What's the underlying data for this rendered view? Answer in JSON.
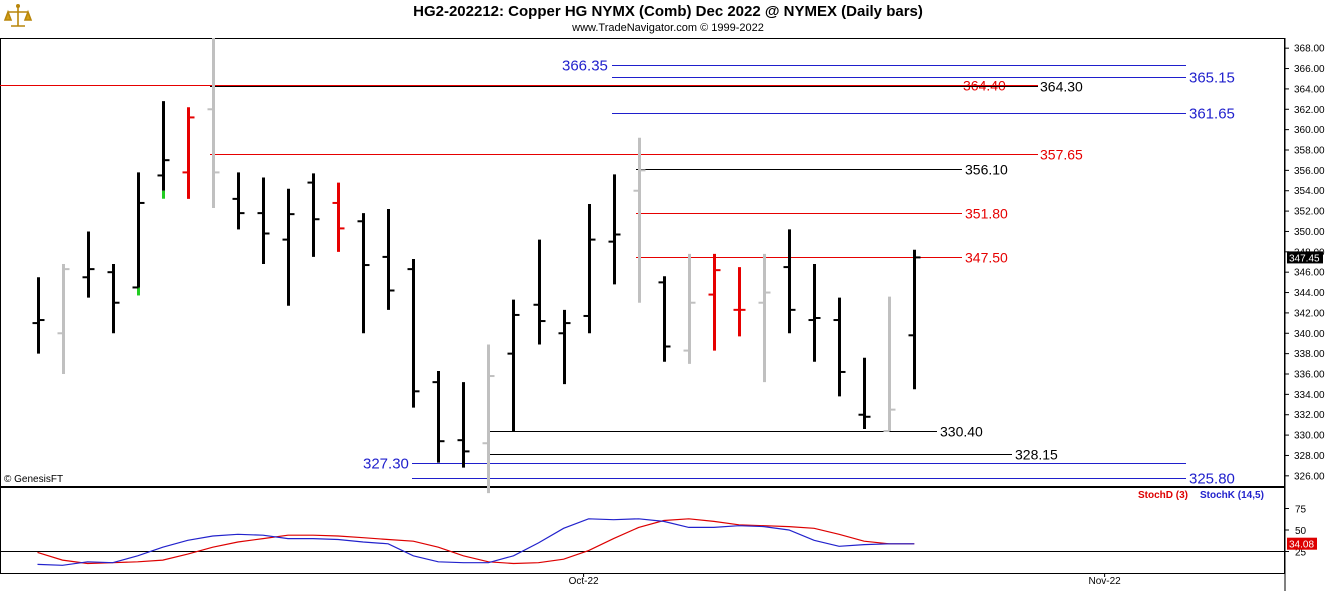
{
  "header": {
    "title": "HG2-202212:  Copper HG NYMX (Comb) Dec 2022 @ NYMEX  (Daily bars)",
    "subtitle": "www.TradeNavigator.com © 1999-2022"
  },
  "copyright": "© GenesisFT",
  "colors": {
    "bar_default": "#000000",
    "bar_inside": "#c0c0c0",
    "bar_red": "#e60000",
    "bar_green": "#22cc22",
    "blue_level": "#1f1fcc",
    "red_level": "#e60000",
    "black_level": "#000000",
    "stoch_d": "#dd0000",
    "stoch_k": "#2222cc"
  },
  "chart_data": [
    {
      "type": "ohlc",
      "title": "HG2-202212:  Copper HG NYMX (Comb) Dec 2022 @ NYMEX  (Daily bars)",
      "ylim": [
        325,
        369
      ],
      "y_ticks": [
        "368.00",
        "366.00",
        "364.00",
        "362.00",
        "360.00",
        "358.00",
        "356.00",
        "354.00",
        "352.00",
        "350.00",
        "348.00",
        "346.00",
        "344.00",
        "342.00",
        "340.00",
        "338.00",
        "336.00",
        "334.00",
        "332.00",
        "330.00",
        "328.00",
        "326.00"
      ],
      "last_price_label": "347.45",
      "last_price": 347.45,
      "bars": [
        {
          "o": 341.0,
          "h": 345.5,
          "l": 338.0,
          "c": 341.3,
          "color": "black"
        },
        {
          "o": 340.0,
          "h": 346.8,
          "l": 336.0,
          "c": 346.3,
          "color": "grey"
        },
        {
          "o": 345.5,
          "h": 350.0,
          "l": 343.5,
          "c": 346.3,
          "color": "black"
        },
        {
          "o": 346.0,
          "h": 346.8,
          "l": 340.0,
          "c": 343.0,
          "color": "black"
        },
        {
          "o": 344.5,
          "h": 355.8,
          "l": 344.5,
          "c": 352.8,
          "color": "black",
          "low_color": "green",
          "low_color_from": 344.5
        },
        {
          "o": 355.5,
          "h": 362.8,
          "l": 354.0,
          "c": 357.0,
          "color": "black",
          "low_color": "green",
          "low_color_from": 354.0
        },
        {
          "o": 355.8,
          "h": 362.2,
          "l": 353.2,
          "c": 361.2,
          "color": "red"
        },
        {
          "o": 362.0,
          "h": 369.0,
          "l": 352.3,
          "c": 355.8,
          "color": "grey"
        },
        {
          "o": 353.2,
          "h": 355.8,
          "l": 350.2,
          "c": 351.8,
          "color": "black"
        },
        {
          "o": 351.8,
          "h": 355.3,
          "l": 346.8,
          "c": 349.8,
          "color": "black"
        },
        {
          "o": 349.2,
          "h": 354.2,
          "l": 342.7,
          "c": 351.7,
          "color": "black"
        },
        {
          "o": 354.8,
          "h": 355.7,
          "l": 347.5,
          "c": 351.2,
          "color": "black"
        },
        {
          "o": 352.8,
          "h": 354.8,
          "l": 348.0,
          "c": 350.3,
          "color": "red"
        },
        {
          "o": 351.0,
          "h": 351.8,
          "l": 340.0,
          "c": 346.7,
          "color": "black"
        },
        {
          "o": 347.5,
          "h": 352.2,
          "l": 342.3,
          "c": 344.2,
          "color": "black"
        },
        {
          "o": 346.3,
          "h": 347.3,
          "l": 332.7,
          "c": 334.3,
          "color": "black"
        },
        {
          "o": 335.2,
          "h": 336.3,
          "l": 327.3,
          "c": 329.4,
          "color": "black"
        },
        {
          "o": 329.5,
          "h": 335.2,
          "l": 326.8,
          "c": 328.4,
          "color": "black"
        },
        {
          "o": 329.2,
          "h": 338.9,
          "l": 324.3,
          "c": 335.8,
          "color": "grey"
        },
        {
          "o": 338.0,
          "h": 343.3,
          "l": 330.4,
          "c": 341.8,
          "color": "black"
        },
        {
          "o": 342.8,
          "h": 349.2,
          "l": 338.9,
          "c": 341.2,
          "color": "black"
        },
        {
          "o": 340.0,
          "h": 342.3,
          "l": 335.0,
          "c": 341.0,
          "color": "black"
        },
        {
          "o": 341.7,
          "h": 352.7,
          "l": 340.0,
          "c": 349.2,
          "color": "black"
        },
        {
          "o": 349.0,
          "h": 355.6,
          "l": 344.8,
          "c": 349.7,
          "color": "black"
        },
        {
          "o": 354.0,
          "h": 359.2,
          "l": 343.0,
          "c": 356.0,
          "color": "grey"
        },
        {
          "o": 345.0,
          "h": 345.6,
          "l": 337.2,
          "c": 338.7,
          "color": "black"
        },
        {
          "o": 338.3,
          "h": 347.8,
          "l": 337.0,
          "c": 343.0,
          "color": "grey"
        },
        {
          "o": 343.8,
          "h": 347.8,
          "l": 338.3,
          "c": 346.2,
          "color": "red"
        },
        {
          "o": 342.3,
          "h": 346.5,
          "l": 339.7,
          "c": 342.3,
          "color": "red"
        },
        {
          "o": 343.0,
          "h": 347.8,
          "l": 335.2,
          "c": 344.0,
          "color": "grey"
        },
        {
          "o": 346.5,
          "h": 350.2,
          "l": 340.0,
          "c": 342.3,
          "color": "black"
        },
        {
          "o": 341.3,
          "h": 346.8,
          "l": 337.2,
          "c": 341.5,
          "color": "black"
        },
        {
          "o": 341.3,
          "h": 343.5,
          "l": 333.8,
          "c": 336.2,
          "color": "black"
        },
        {
          "o": 332.0,
          "h": 337.6,
          "l": 330.6,
          "c": 331.8,
          "color": "black"
        },
        {
          "o": 330.4,
          "h": 343.6,
          "l": 330.4,
          "c": 332.5,
          "color": "grey"
        },
        {
          "o": 339.8,
          "h": 348.2,
          "l": 334.5,
          "c": 347.45,
          "color": "black"
        }
      ],
      "levels": [
        {
          "value": 366.35,
          "label": "366.35",
          "color": "blue",
          "label_side": "left"
        },
        {
          "value": 365.15,
          "label": "365.15",
          "color": "blue",
          "label_side": "right"
        },
        {
          "value": 364.4,
          "label": "364.40",
          "color": "red",
          "label_side": "mid"
        },
        {
          "value": 364.3,
          "label": "364.30",
          "color": "black",
          "label_side": "mid"
        },
        {
          "value": 361.65,
          "label": "361.65",
          "color": "blue",
          "label_side": "right"
        },
        {
          "value": 357.65,
          "label": "357.65",
          "color": "red",
          "label_side": "mid"
        },
        {
          "value": 356.1,
          "label": "356.10",
          "color": "black",
          "label_side": "mid"
        },
        {
          "value": 351.8,
          "label": "351.80",
          "color": "red",
          "label_side": "mid"
        },
        {
          "value": 347.5,
          "label": "347.50",
          "color": "red",
          "label_side": "mid"
        },
        {
          "value": 330.4,
          "label": "330.40",
          "color": "black",
          "label_side": "mid"
        },
        {
          "value": 328.15,
          "label": "328.15",
          "color": "black",
          "label_side": "mid"
        },
        {
          "value": 327.3,
          "label": "327.30",
          "color": "blue",
          "label_side": "left"
        },
        {
          "value": 325.8,
          "label": "325.80",
          "color": "blue",
          "label_side": "right"
        }
      ]
    },
    {
      "type": "line",
      "legend": [
        "StochD (3)",
        "StochK (14,5)"
      ],
      "ylim": [
        0,
        100
      ],
      "y_ticks": [
        "75",
        "50",
        "25"
      ],
      "last_value_label": "34.08",
      "x_labels": [
        "Oct-22",
        "Nov-22"
      ],
      "series": [
        {
          "name": "StochD (3)",
          "color": "red",
          "values": [
            24,
            15,
            11,
            12,
            13,
            15,
            22,
            30,
            36,
            40,
            44,
            44,
            43,
            41,
            39,
            37,
            30,
            20,
            13,
            11,
            12,
            16,
            26,
            40,
            53,
            61,
            63,
            60,
            56,
            55,
            54,
            52,
            45,
            37,
            34,
            34
          ]
        },
        {
          "name": "StochK (14,5)",
          "color": "blue",
          "values": [
            10,
            9,
            13,
            12,
            20,
            30,
            38,
            43,
            45,
            44,
            40,
            40,
            39,
            36,
            34,
            20,
            13,
            12,
            12,
            20,
            35,
            52,
            63,
            62,
            63,
            60,
            53,
            53,
            55,
            54,
            50,
            38,
            31,
            33,
            34,
            34
          ]
        }
      ]
    }
  ]
}
